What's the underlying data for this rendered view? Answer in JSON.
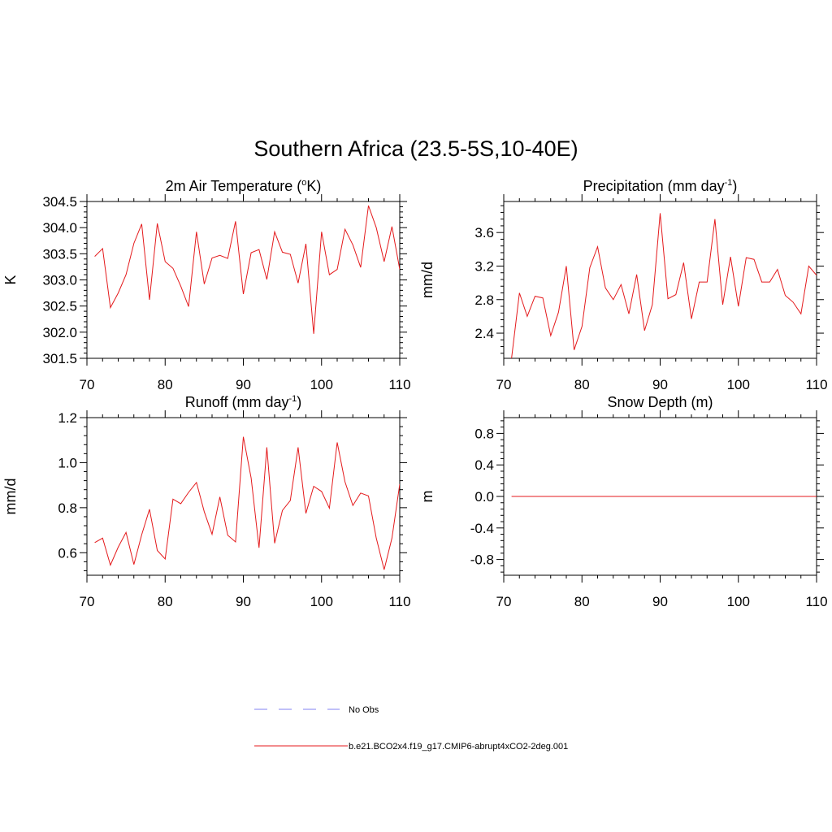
{
  "figure_title": "Southern Africa (23.5-5S,10-40E)",
  "colors": {
    "model": "#e41a1c",
    "obs": "#9b9bf5",
    "axis": "#000000"
  },
  "legend": {
    "obs_label": "No Obs",
    "model_label": "b.e21.BCO2x4.f19_g17.CMIP6-abrupt4xCO2-2deg.001"
  },
  "chart_data": [
    {
      "id": "temperature",
      "type": "line",
      "title": "2m Air Temperature (",
      "title_sup": "o",
      "title_suffix": "K)",
      "ylabel": "K",
      "xlim": [
        70,
        110
      ],
      "ylim": [
        301.5,
        304.5
      ],
      "xticks": [
        70,
        80,
        90,
        100,
        110
      ],
      "yticks": [
        301.5,
        302.0,
        302.5,
        303.0,
        303.5,
        304.0,
        304.5
      ],
      "ytick_labels": [
        "301.5",
        "302.0",
        "302.5",
        "303.0",
        "303.5",
        "304.0",
        "304.5"
      ],
      "grid": false,
      "series": [
        {
          "x": [
            71,
            72,
            73,
            74,
            75,
            76,
            77,
            78,
            79,
            80,
            81,
            82,
            83,
            84,
            85,
            86,
            87,
            88,
            89,
            90,
            91,
            92,
            93,
            94,
            95,
            96,
            97,
            98,
            99,
            100,
            101,
            102,
            103,
            104,
            105,
            106,
            107,
            108,
            109,
            110
          ],
          "values": [
            303.45,
            303.6,
            302.47,
            302.75,
            303.1,
            303.7,
            304.07,
            302.62,
            304.08,
            303.35,
            303.22,
            302.88,
            302.49,
            303.92,
            302.92,
            303.42,
            303.47,
            303.41,
            304.12,
            302.73,
            303.52,
            303.58,
            303.01,
            303.92,
            303.53,
            303.49,
            302.94,
            303.69,
            301.97,
            303.92,
            303.1,
            303.2,
            303.97,
            303.67,
            303.24,
            304.42,
            304.0,
            303.35,
            304.02,
            303.2
          ]
        }
      ]
    },
    {
      "id": "precipitation",
      "type": "line",
      "title": "Precipitation (mm day",
      "title_sup": "-1",
      "title_suffix": ")",
      "ylabel": "mm/d",
      "xlim": [
        70,
        110
      ],
      "ylim": [
        2.1,
        3.97
      ],
      "xticks": [
        70,
        80,
        90,
        100,
        110
      ],
      "yticks": [
        2.4,
        2.8,
        3.2,
        3.6
      ],
      "ytick_labels": [
        "2.4",
        "2.8",
        "3.2",
        "3.6"
      ],
      "grid": false,
      "series": [
        {
          "x": [
            71,
            72,
            73,
            74,
            75,
            76,
            77,
            78,
            79,
            80,
            81,
            82,
            83,
            84,
            85,
            86,
            87,
            88,
            89,
            90,
            91,
            92,
            93,
            94,
            95,
            96,
            97,
            98,
            99,
            100,
            101,
            102,
            103,
            104,
            105,
            106,
            107,
            108,
            109,
            110
          ],
          "values": [
            2.1,
            2.88,
            2.6,
            2.84,
            2.82,
            2.37,
            2.65,
            3.2,
            2.2,
            2.48,
            3.18,
            3.43,
            2.94,
            2.8,
            2.98,
            2.63,
            3.1,
            2.43,
            2.74,
            3.83,
            2.81,
            2.86,
            3.24,
            2.57,
            3.01,
            3.01,
            3.76,
            2.74,
            3.31,
            2.72,
            3.3,
            3.28,
            3.01,
            3.01,
            3.16,
            2.85,
            2.77,
            2.63,
            3.2,
            3.09
          ]
        }
      ]
    },
    {
      "id": "runoff",
      "type": "line",
      "title": "Runoff (mm day",
      "title_sup": "-1",
      "title_suffix": ")",
      "ylabel": "mm/d",
      "xlim": [
        70,
        110
      ],
      "ylim": [
        0.5,
        1.2
      ],
      "xticks": [
        70,
        80,
        90,
        100,
        110
      ],
      "yticks": [
        0.6,
        0.8,
        1.0,
        1.2
      ],
      "ytick_labels": [
        "0.6",
        "0.8",
        "1.0",
        "1.2"
      ],
      "grid": false,
      "series": [
        {
          "x": [
            71,
            72,
            73,
            74,
            75,
            76,
            77,
            78,
            79,
            80,
            81,
            82,
            83,
            84,
            85,
            86,
            87,
            88,
            89,
            90,
            91,
            92,
            93,
            94,
            95,
            96,
            97,
            98,
            99,
            100,
            101,
            102,
            103,
            104,
            105,
            106,
            107,
            108,
            109,
            110
          ],
          "values": [
            0.645,
            0.665,
            0.545,
            0.625,
            0.69,
            0.548,
            0.68,
            0.793,
            0.61,
            0.572,
            0.838,
            0.818,
            0.868,
            0.912,
            0.782,
            0.682,
            0.848,
            0.678,
            0.648,
            1.115,
            0.932,
            0.622,
            1.068,
            0.642,
            0.788,
            0.832,
            1.068,
            0.775,
            0.895,
            0.872,
            0.798,
            1.09,
            0.915,
            0.81,
            0.865,
            0.852,
            0.665,
            0.525,
            0.665,
            0.905
          ]
        }
      ]
    },
    {
      "id": "snow_depth",
      "type": "line",
      "title": "Snow Depth (m)",
      "title_sup": "",
      "title_suffix": "",
      "ylabel": "m",
      "xlim": [
        70,
        110
      ],
      "ylim": [
        -1.0,
        1.0
      ],
      "xticks": [
        70,
        80,
        90,
        100,
        110
      ],
      "yticks": [
        -0.8,
        -0.4,
        0.0,
        0.4,
        0.8
      ],
      "ytick_labels": [
        "-0.8",
        "-0.4",
        "0.0",
        "0.4",
        "0.8"
      ],
      "grid": false,
      "series": [
        {
          "x": [
            71,
            72,
            73,
            74,
            75,
            76,
            77,
            78,
            79,
            80,
            81,
            82,
            83,
            84,
            85,
            86,
            87,
            88,
            89,
            90,
            91,
            92,
            93,
            94,
            95,
            96,
            97,
            98,
            99,
            100,
            101,
            102,
            103,
            104,
            105,
            106,
            107,
            108,
            109,
            110
          ],
          "values": [
            0,
            0,
            0,
            0,
            0,
            0,
            0,
            0,
            0,
            0,
            0,
            0,
            0,
            0,
            0,
            0,
            0,
            0,
            0,
            0,
            0,
            0,
            0,
            0,
            0,
            0,
            0,
            0,
            0,
            0,
            0,
            0,
            0,
            0,
            0,
            0,
            0,
            0,
            0,
            0
          ]
        }
      ]
    }
  ]
}
